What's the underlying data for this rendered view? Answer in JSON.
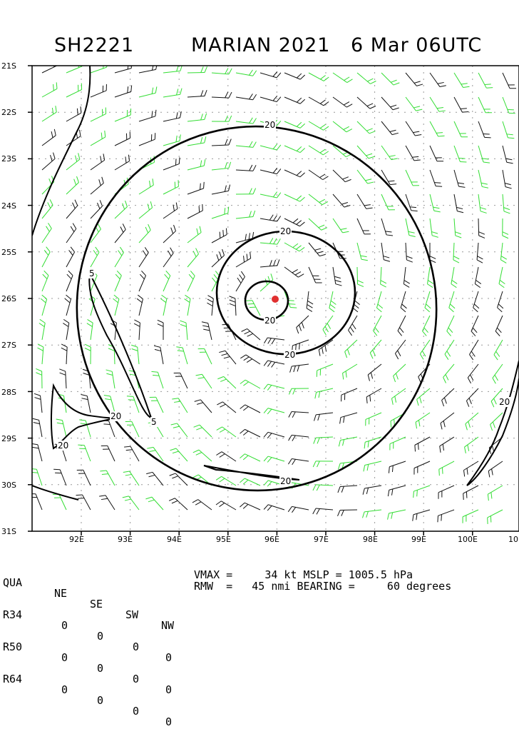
{
  "header": {
    "storm_id": "SH2221",
    "storm_name_year": "MARIAN 2021",
    "datetime": "6 Mar 06UTC"
  },
  "map": {
    "lat_labels": [
      "21S",
      "22S",
      "23S",
      "24S",
      "25S",
      "26S",
      "27S",
      "28S",
      "29S",
      "30S",
      "31S"
    ],
    "lon_labels": [
      "92E",
      "93E",
      "94E",
      "95E",
      "96E",
      "97E",
      "98E",
      "99E",
      "100E",
      "10"
    ],
    "contour_labels": {
      "outer_top": "20",
      "middle_top": "20",
      "inner_bottom": "20",
      "middle_bottom": "20",
      "outer_bottom": "20",
      "land_west_a": "20",
      "land_west_b": "20",
      "land_east": "20",
      "land_west_c": "5",
      "land_west_d": "5"
    },
    "center": {
      "lat": "26S",
      "lon": "96E"
    },
    "colors": {
      "barb_black": "#111111",
      "barb_green": "#33dd33",
      "center": "#e03030",
      "contour": "#000000"
    }
  },
  "wind_radii": {
    "headers": [
      "QUA",
      "NE",
      "SE",
      "SW",
      "NW"
    ],
    "rows": [
      {
        "label": "R34",
        "values": [
          "0",
          "0",
          "0",
          "0"
        ]
      },
      {
        "label": "R50",
        "values": [
          "0",
          "0",
          "0",
          "0"
        ]
      },
      {
        "label": "R64",
        "values": [
          "0",
          "0",
          "0",
          "0"
        ]
      }
    ]
  },
  "stats": {
    "line1": "VMAX =     34 kt MSLP = 1005.5 hPa",
    "line2": "RMW  =   45 nmi BEARING =     60 degrees"
  }
}
